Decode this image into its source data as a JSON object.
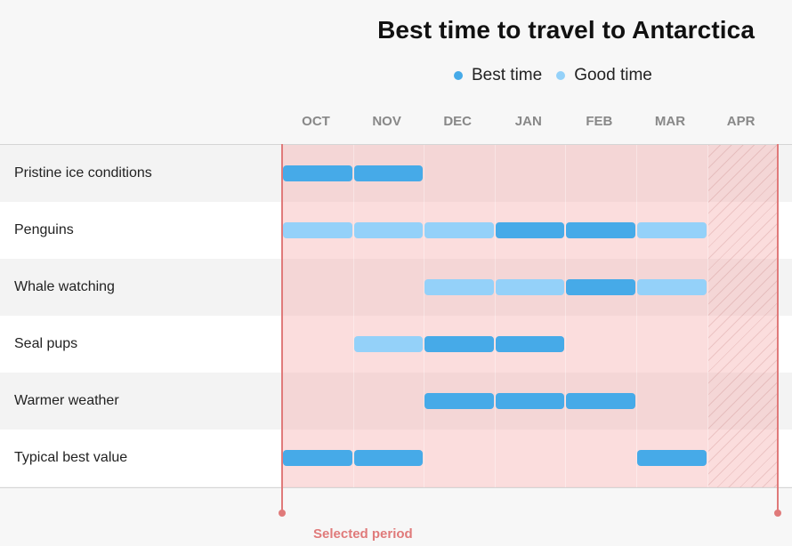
{
  "chart_data": {
    "type": "timeline",
    "title": "Best time to travel to Antarctica",
    "legend": [
      {
        "label": "Best time",
        "color": "#46aae8"
      },
      {
        "label": "Good time",
        "color": "#94d1f9"
      }
    ],
    "months": [
      "OCT",
      "NOV",
      "DEC",
      "JAN",
      "FEB",
      "MAR",
      "APR"
    ],
    "rows": [
      {
        "label": "Pristine ice conditions",
        "segments": [
          {
            "start": "OCT",
            "end": "NOV",
            "level": "best"
          }
        ]
      },
      {
        "label": "Penguins",
        "segments": [
          {
            "start": "OCT",
            "end": "DEC",
            "level": "good"
          },
          {
            "start": "JAN",
            "end": "FEB",
            "level": "best"
          },
          {
            "start": "MAR",
            "end": "MAR",
            "level": "good"
          }
        ]
      },
      {
        "label": "Whale watching",
        "segments": [
          {
            "start": "DEC",
            "end": "JAN",
            "level": "good"
          },
          {
            "start": "FEB",
            "end": "FEB",
            "level": "best"
          },
          {
            "start": "MAR",
            "end": "MAR",
            "level": "good"
          }
        ]
      },
      {
        "label": "Seal pups",
        "segments": [
          {
            "start": "NOV",
            "end": "NOV",
            "level": "good"
          },
          {
            "start": "DEC",
            "end": "JAN",
            "level": "best"
          }
        ]
      },
      {
        "label": "Warmer weather",
        "segments": [
          {
            "start": "DEC",
            "end": "FEB",
            "level": "best"
          }
        ]
      },
      {
        "label": "Typical best value",
        "segments": [
          {
            "start": "OCT",
            "end": "NOV",
            "level": "best"
          },
          {
            "start": "MAR",
            "end": "MAR",
            "level": "best"
          }
        ]
      }
    ],
    "selected_period": {
      "label": "Selected period",
      "start": "OCT",
      "end": "APR"
    },
    "out_of_season": [
      "APR"
    ],
    "colors": {
      "selected": "#e07a7a",
      "best": "#46aae8",
      "good": "#94d1f9"
    }
  }
}
